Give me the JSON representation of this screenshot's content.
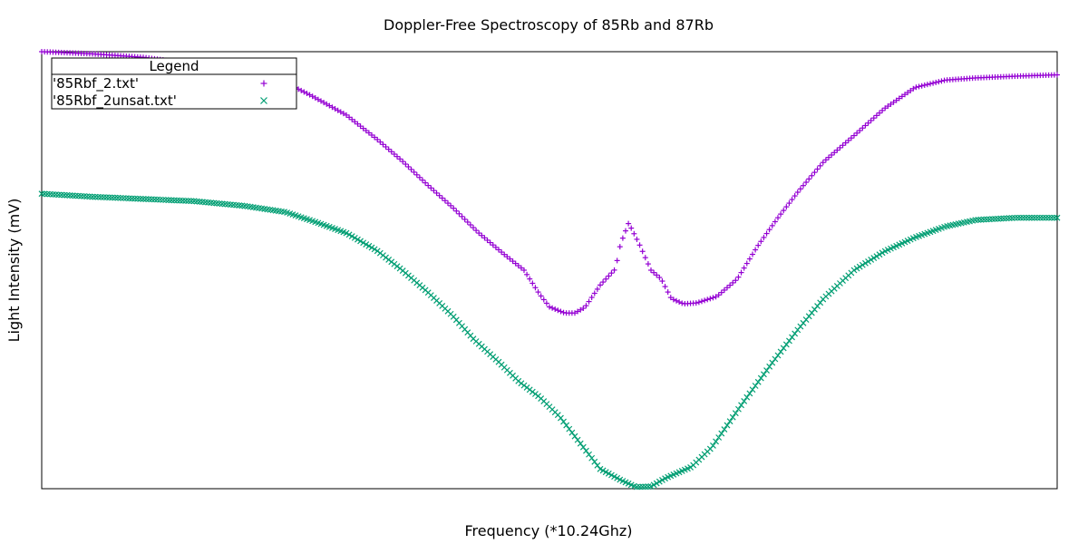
{
  "chart_data": {
    "type": "scatter",
    "title": "Doppler-Free Spectroscopy of 85Rb and 87Rb",
    "xlabel": "Frequency (*10.24Ghz)",
    "ylabel": "Light Intensity (mV)",
    "xlim": [
      0,
      1
    ],
    "ylim": [
      0,
      1
    ],
    "x_tick_labels": false,
    "y_tick_labels": false,
    "grid": false,
    "legend": {
      "title": "Legend",
      "placement": "top-left"
    },
    "series": [
      {
        "name": "'85Rbf_2.txt'",
        "marker": "+",
        "color": "#9400d3",
        "points": [
          [
            0.0,
            1.0
          ],
          [
            0.05,
            0.995
          ],
          [
            0.1,
            0.987
          ],
          [
            0.15,
            0.972
          ],
          [
            0.2,
            0.955
          ],
          [
            0.235,
            0.935
          ],
          [
            0.265,
            0.9
          ],
          [
            0.3,
            0.855
          ],
          [
            0.33,
            0.8
          ],
          [
            0.355,
            0.75
          ],
          [
            0.38,
            0.695
          ],
          [
            0.405,
            0.643
          ],
          [
            0.43,
            0.586
          ],
          [
            0.455,
            0.537
          ],
          [
            0.475,
            0.5
          ],
          [
            0.49,
            0.446
          ],
          [
            0.5,
            0.416
          ],
          [
            0.515,
            0.402
          ],
          [
            0.525,
            0.402
          ],
          [
            0.535,
            0.415
          ],
          [
            0.55,
            0.466
          ],
          [
            0.565,
            0.503
          ],
          [
            0.57,
            0.56
          ],
          [
            0.578,
            0.608
          ],
          [
            0.588,
            0.562
          ],
          [
            0.6,
            0.5
          ],
          [
            0.61,
            0.48
          ],
          [
            0.62,
            0.435
          ],
          [
            0.632,
            0.423
          ],
          [
            0.645,
            0.425
          ],
          [
            0.665,
            0.44
          ],
          [
            0.685,
            0.48
          ],
          [
            0.705,
            0.555
          ],
          [
            0.725,
            0.62
          ],
          [
            0.745,
            0.68
          ],
          [
            0.77,
            0.748
          ],
          [
            0.8,
            0.808
          ],
          [
            0.83,
            0.87
          ],
          [
            0.86,
            0.918
          ],
          [
            0.89,
            0.935
          ],
          [
            0.92,
            0.94
          ],
          [
            0.96,
            0.944
          ],
          [
            1.0,
            0.947
          ]
        ]
      },
      {
        "name": "'85Rbf_2unsat.txt'",
        "marker": "x",
        "color": "#009e73",
        "points": [
          [
            0.0,
            0.675
          ],
          [
            0.05,
            0.668
          ],
          [
            0.1,
            0.663
          ],
          [
            0.15,
            0.658
          ],
          [
            0.2,
            0.647
          ],
          [
            0.24,
            0.633
          ],
          [
            0.27,
            0.61
          ],
          [
            0.3,
            0.585
          ],
          [
            0.33,
            0.545
          ],
          [
            0.355,
            0.5
          ],
          [
            0.38,
            0.45
          ],
          [
            0.405,
            0.395
          ],
          [
            0.425,
            0.343
          ],
          [
            0.45,
            0.29
          ],
          [
            0.47,
            0.245
          ],
          [
            0.49,
            0.21
          ],
          [
            0.51,
            0.165
          ],
          [
            0.53,
            0.105
          ],
          [
            0.55,
            0.045
          ],
          [
            0.57,
            0.02
          ],
          [
            0.585,
            0.004
          ],
          [
            0.6,
            0.005
          ],
          [
            0.615,
            0.025
          ],
          [
            0.64,
            0.05
          ],
          [
            0.66,
            0.095
          ],
          [
            0.69,
            0.195
          ],
          [
            0.72,
            0.29
          ],
          [
            0.745,
            0.365
          ],
          [
            0.77,
            0.435
          ],
          [
            0.8,
            0.5
          ],
          [
            0.83,
            0.543
          ],
          [
            0.86,
            0.575
          ],
          [
            0.89,
            0.6
          ],
          [
            0.92,
            0.615
          ],
          [
            0.96,
            0.62
          ],
          [
            1.0,
            0.62
          ]
        ]
      }
    ]
  }
}
